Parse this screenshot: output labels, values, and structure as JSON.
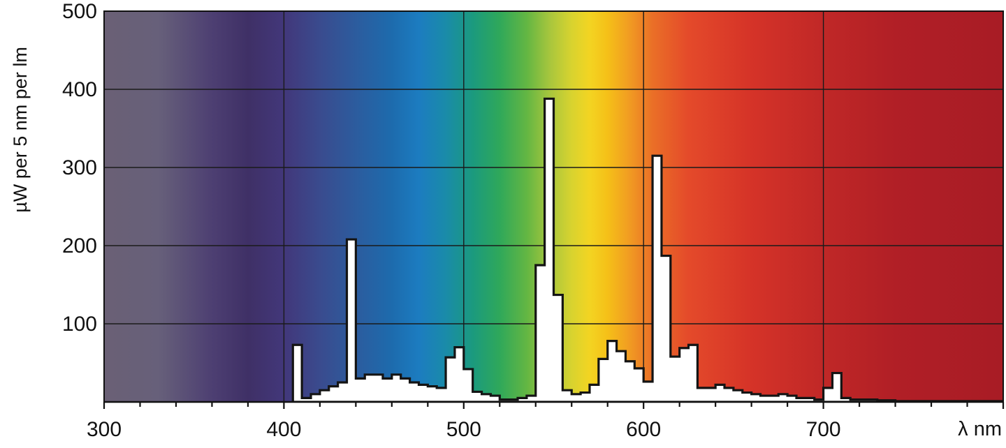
{
  "chart_data": {
    "type": "area",
    "title": "",
    "xlabel": "λ nm",
    "ylabel": "µW per 5 nm per lm",
    "xlim": [
      300,
      800
    ],
    "ylim": [
      0,
      500
    ],
    "x_ticks": [
      300,
      400,
      500,
      600,
      700
    ],
    "x_tick_labels": [
      "300",
      "400",
      "500",
      "600",
      "700"
    ],
    "y_ticks": [
      100,
      200,
      300,
      400,
      500
    ],
    "y_tick_labels": [
      "100",
      "200",
      "300",
      "400",
      "500"
    ],
    "grid": true,
    "background": "visible spectrum gradient",
    "bin_width_nm": 5,
    "bins_start_nm": [
      405,
      410,
      415,
      420,
      425,
      430,
      435,
      440,
      445,
      450,
      455,
      460,
      465,
      470,
      475,
      480,
      485,
      490,
      495,
      500,
      505,
      510,
      515,
      520,
      525,
      530,
      535,
      540,
      545,
      550,
      555,
      560,
      565,
      570,
      575,
      580,
      585,
      590,
      595,
      600,
      605,
      610,
      615,
      620,
      625,
      630,
      635,
      640,
      645,
      650,
      655,
      660,
      665,
      670,
      675,
      680,
      685,
      690,
      695,
      700,
      705,
      710,
      715,
      720,
      725,
      730,
      735,
      740,
      745,
      750,
      755,
      760,
      765,
      770,
      775,
      780,
      785,
      790,
      795
    ],
    "values": [
      73,
      5,
      10,
      15,
      20,
      25,
      208,
      30,
      35,
      35,
      30,
      35,
      30,
      25,
      22,
      20,
      18,
      57,
      70,
      42,
      13,
      10,
      8,
      3,
      3,
      5,
      8,
      175,
      388,
      137,
      15,
      10,
      12,
      22,
      55,
      78,
      65,
      52,
      43,
      26,
      315,
      187,
      58,
      69,
      73,
      18,
      18,
      22,
      18,
      15,
      12,
      10,
      8,
      8,
      10,
      8,
      5,
      5,
      3,
      18,
      37,
      5,
      3,
      3,
      3,
      2,
      2,
      1,
      1,
      1,
      1,
      1,
      1,
      1,
      1,
      1,
      1,
      1,
      1
    ],
    "colors": {
      "gradient_stops": [
        [
          "300",
          "#6a6075"
        ],
        [
          "330",
          "#67607a"
        ],
        [
          "360",
          "#4d3f72"
        ],
        [
          "380",
          "#3f3066"
        ],
        [
          "400",
          "#42377a"
        ],
        [
          "420",
          "#3a4b8e"
        ],
        [
          "440",
          "#2c5c9e"
        ],
        [
          "460",
          "#1d6bad"
        ],
        [
          "475",
          "#1c7cc0"
        ],
        [
          "490",
          "#1a8ba9"
        ],
        [
          "505",
          "#1b9a7e"
        ],
        [
          "520",
          "#2fa85a"
        ],
        [
          "535",
          "#63b643"
        ],
        [
          "548",
          "#a8c63d"
        ],
        [
          "560",
          "#d8d32f"
        ],
        [
          "570",
          "#f3d422"
        ],
        [
          "580",
          "#f5c018"
        ],
        [
          "592",
          "#f19c22"
        ],
        [
          "605",
          "#ea6f27"
        ],
        [
          "625",
          "#e44a2a"
        ],
        [
          "660",
          "#d53328"
        ],
        [
          "700",
          "#c02827"
        ],
        [
          "740",
          "#b11f26"
        ],
        [
          "800",
          "#a81c25"
        ]
      ],
      "gridline": "#1a1a1a",
      "spectrum_fill": "#ffffff",
      "spectrum_outline": "#141414"
    }
  }
}
